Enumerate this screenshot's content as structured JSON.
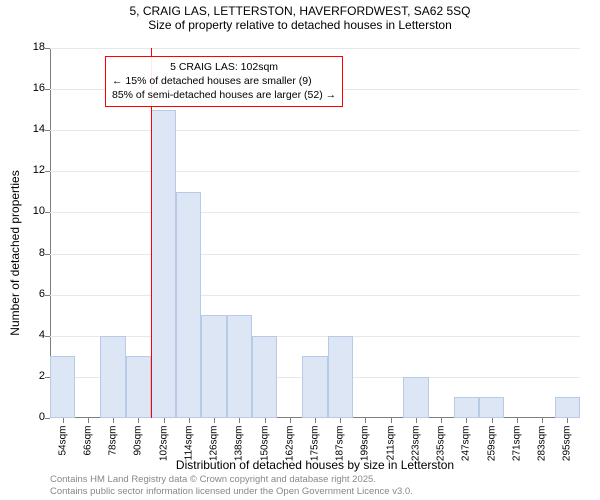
{
  "title_line1": "5, CRAIG LAS, LETTERSTON, HAVERFORDWEST, SA62 5SQ",
  "title_line2": "Size of property relative to detached houses in Letterston",
  "y_axis_label": "Number of detached properties",
  "x_axis_label": "Distribution of detached houses by size in Letterston",
  "histogram": {
    "type": "histogram",
    "categories": [
      "54sqm",
      "66sqm",
      "78sqm",
      "90sqm",
      "102sqm",
      "114sqm",
      "126sqm",
      "138sqm",
      "150sqm",
      "162sqm",
      "175sqm",
      "187sqm",
      "199sqm",
      "211sqm",
      "223sqm",
      "235sqm",
      "247sqm",
      "259sqm",
      "271sqm",
      "283sqm",
      "295sqm"
    ],
    "values": [
      3,
      0,
      4,
      3,
      15,
      11,
      5,
      5,
      4,
      0,
      3,
      4,
      0,
      0,
      2,
      0,
      1,
      1,
      0,
      0,
      1
    ],
    "bar_fill": "#dce6f5",
    "bar_border": "#b7cbe7",
    "ylim": [
      0,
      18
    ],
    "ytick_step": 2,
    "grid_color": "#e8e8e8",
    "axis_color": "#7d7d7d",
    "background_color": "#ffffff",
    "bar_width": 1.0
  },
  "callout": {
    "line1": "5 CRAIG LAS: 102sqm",
    "line2": "← 15% of detached houses are smaller (9)",
    "line3": "85% of semi-detached houses are larger (52) →",
    "border_color": "#ff0000",
    "vline_x_category": "102sqm"
  },
  "footer_line1": "Contains HM Land Registry data © Crown copyright and database right 2025.",
  "footer_line2": "Contains public sector information licensed under the Open Government Licence v3.0."
}
